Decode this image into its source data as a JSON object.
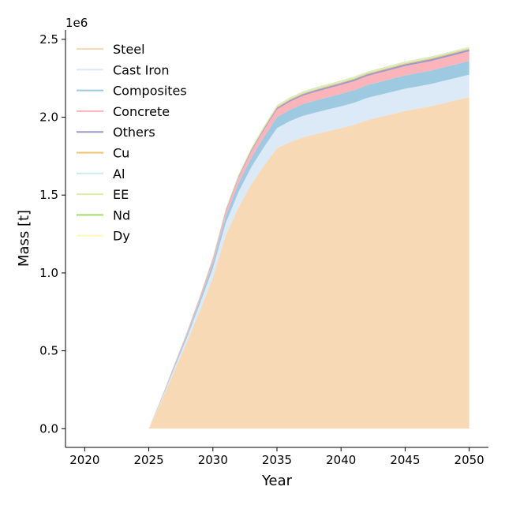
{
  "chart_data": {
    "type": "area",
    "stacked": true,
    "title": "",
    "xlabel": "Year",
    "ylabel": "Mass [t]",
    "y_multiplier": "1e6",
    "xlim": [
      2018.5,
      2051.5
    ],
    "ylim": [
      -0.12,
      2.56
    ],
    "x_ticks": [
      2020,
      2025,
      2030,
      2035,
      2040,
      2045,
      2050
    ],
    "x_tick_labels": [
      "2020",
      "2025",
      "2030",
      "2035",
      "2040",
      "2045",
      "2050"
    ],
    "y_ticks": [
      0.0,
      0.5,
      1.0,
      1.5,
      2.0,
      2.5
    ],
    "y_tick_labels": [
      "0.0",
      "0.5",
      "1.0",
      "1.5",
      "2.0",
      "2.5"
    ],
    "grid": false,
    "legend_position": "upper-left",
    "x": [
      2025,
      2026,
      2027,
      2028,
      2029,
      2030,
      2031,
      2032,
      2033,
      2034,
      2035,
      2036,
      2037,
      2038,
      2039,
      2040,
      2041,
      2042,
      2043,
      2044,
      2045,
      2046,
      2047,
      2048,
      2049,
      2050
    ],
    "series": [
      {
        "name": "Steel",
        "color": "#f7d9b5",
        "values": [
          0.0,
          0.18,
          0.37,
          0.56,
          0.76,
          0.97,
          1.24,
          1.42,
          1.57,
          1.69,
          1.8,
          1.84,
          1.87,
          1.89,
          1.91,
          1.93,
          1.95,
          1.98,
          2.0,
          2.02,
          2.04,
          2.055,
          2.07,
          2.09,
          2.11,
          2.13
        ]
      },
      {
        "name": "Cast Iron",
        "color": "#dce9f6",
        "values": [
          0.0,
          0.01,
          0.02,
          0.03,
          0.045,
          0.06,
          0.08,
          0.1,
          0.11,
          0.12,
          0.13,
          0.135,
          0.138,
          0.14,
          0.14,
          0.14,
          0.142,
          0.143,
          0.143,
          0.143,
          0.143,
          0.143,
          0.143,
          0.143,
          0.143,
          0.143
        ]
      },
      {
        "name": "Composites",
        "color": "#9ecae1",
        "values": [
          0.0,
          0.006,
          0.012,
          0.018,
          0.025,
          0.035,
          0.045,
          0.055,
          0.06,
          0.065,
          0.07,
          0.072,
          0.075,
          0.077,
          0.079,
          0.08,
          0.081,
          0.082,
          0.083,
          0.084,
          0.085,
          0.086,
          0.086,
          0.087,
          0.087,
          0.088
        ]
      },
      {
        "name": "Concrete",
        "color": "#fbb4b9",
        "values": [
          0.0,
          0.004,
          0.008,
          0.012,
          0.017,
          0.023,
          0.03,
          0.037,
          0.042,
          0.046,
          0.05,
          0.052,
          0.054,
          0.055,
          0.056,
          0.057,
          0.058,
          0.058,
          0.059,
          0.059,
          0.06,
          0.06,
          0.061,
          0.061,
          0.062,
          0.062
        ]
      },
      {
        "name": "Others",
        "color": "#9e9ac8",
        "values": [
          0.0,
          0.001,
          0.002,
          0.003,
          0.004,
          0.005,
          0.006,
          0.007,
          0.008,
          0.009,
          0.01,
          0.01,
          0.01,
          0.011,
          0.011,
          0.011,
          0.011,
          0.011,
          0.011,
          0.012,
          0.012,
          0.012,
          0.012,
          0.012,
          0.012,
          0.012
        ]
      },
      {
        "name": "Cu",
        "color": "#f1c26b",
        "values": [
          0.0,
          0.001,
          0.001,
          0.002,
          0.002,
          0.003,
          0.004,
          0.004,
          0.005,
          0.005,
          0.006,
          0.006,
          0.006,
          0.006,
          0.006,
          0.006,
          0.006,
          0.006,
          0.006,
          0.006,
          0.006,
          0.006,
          0.006,
          0.006,
          0.006,
          0.006
        ]
      },
      {
        "name": "Al",
        "color": "#cdeaea",
        "values": [
          0.0,
          0.001,
          0.001,
          0.002,
          0.002,
          0.003,
          0.003,
          0.004,
          0.004,
          0.005,
          0.005,
          0.005,
          0.005,
          0.005,
          0.005,
          0.005,
          0.005,
          0.005,
          0.005,
          0.005,
          0.005,
          0.005,
          0.005,
          0.005,
          0.005,
          0.005
        ]
      },
      {
        "name": "EE",
        "color": "#d9f0a3",
        "values": [
          0.0,
          0.001,
          0.001,
          0.002,
          0.002,
          0.003,
          0.003,
          0.004,
          0.004,
          0.004,
          0.005,
          0.005,
          0.005,
          0.005,
          0.005,
          0.005,
          0.005,
          0.005,
          0.005,
          0.005,
          0.005,
          0.005,
          0.005,
          0.005,
          0.005,
          0.005
        ]
      },
      {
        "name": "Nd",
        "color": "#a6d96a",
        "values": [
          0.0,
          0.0,
          0.0,
          0.0,
          0.0,
          0.001,
          0.001,
          0.001,
          0.001,
          0.001,
          0.001,
          0.001,
          0.001,
          0.001,
          0.001,
          0.001,
          0.001,
          0.001,
          0.001,
          0.001,
          0.001,
          0.001,
          0.001,
          0.001,
          0.001,
          0.001
        ]
      },
      {
        "name": "Dy",
        "color": "#fbfbb8",
        "values": [
          0.0,
          0.0,
          0.0,
          0.0,
          0.0,
          0.0,
          0.0,
          0.0,
          0.0,
          0.0,
          0.0,
          0.0,
          0.0,
          0.0,
          0.0,
          0.0,
          0.0,
          0.0,
          0.0,
          0.0,
          0.0,
          0.0,
          0.0,
          0.0,
          0.0,
          0.0
        ]
      }
    ]
  }
}
